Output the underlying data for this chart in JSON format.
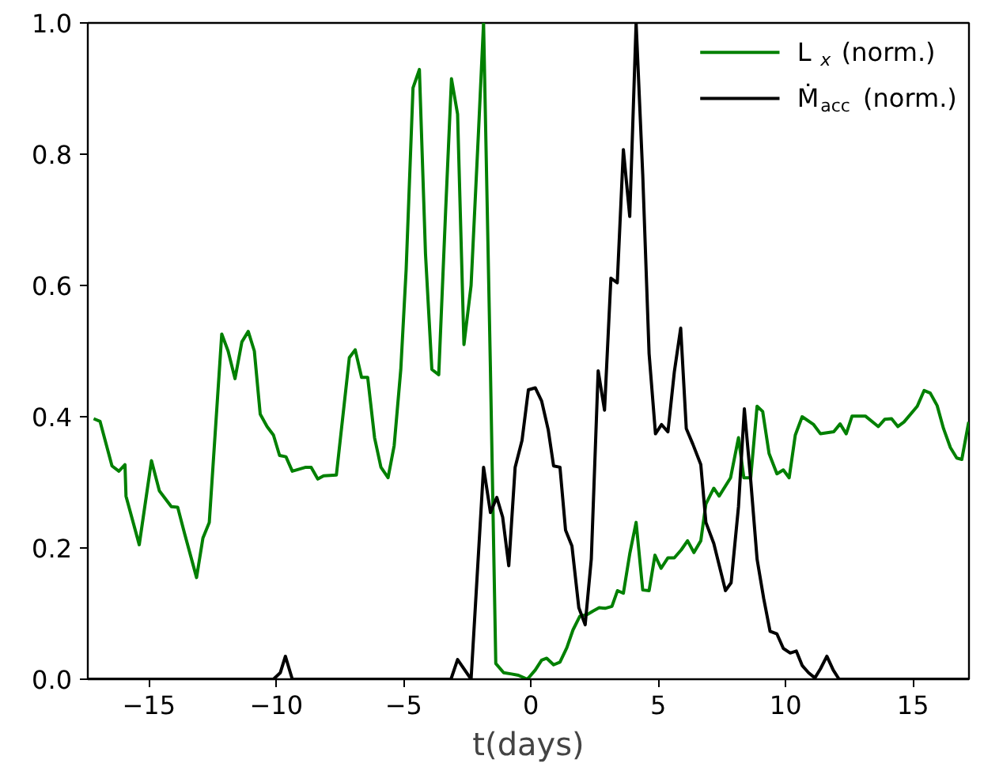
{
  "chart_data": {
    "type": "line",
    "xlabel": "t(days)",
    "xlim": [
      -17.4,
      17.2
    ],
    "ylim": [
      0,
      1
    ],
    "xticks": [
      {
        "value": -15,
        "label": "−15"
      },
      {
        "value": -10,
        "label": "−10"
      },
      {
        "value": -5,
        "label": "−5"
      },
      0,
      5,
      10,
      15
    ],
    "yticks": [
      {
        "value": 0,
        "label": "0.0"
      },
      {
        "value": 0.2,
        "label": "0.2"
      },
      {
        "value": 0.4,
        "label": "0.4"
      },
      {
        "value": 0.6,
        "label": "0.6"
      },
      {
        "value": 0.8,
        "label": "0.8"
      },
      {
        "value": 1,
        "label": "1.0"
      }
    ],
    "grid": false,
    "legend": "top right",
    "marker": "none",
    "line_style": "solid",
    "series": [
      {
        "name": "L$_{x}$ (norm.)",
        "color": "#008000",
        "x": [
          -17.17,
          -16.92,
          -16.45,
          -16.18,
          -15.94,
          -15.9,
          -15.38,
          -14.9,
          -14.59,
          -14.12,
          -13.87,
          -13.6,
          -13.13,
          -12.88,
          -12.63,
          -12.14,
          -11.89,
          -11.62,
          -11.35,
          -11.1,
          -10.86,
          -10.63,
          -10.36,
          -10.11,
          -9.87,
          -9.62,
          -9.37,
          -8.84,
          -8.63,
          -8.37,
          -8.14,
          -7.64,
          -7.13,
          -6.9,
          -6.65,
          -6.41,
          -6.14,
          -5.89,
          -5.61,
          -5.37,
          -5.11,
          -4.9,
          -4.63,
          -4.38,
          -4.14,
          -3.89,
          -3.62,
          -3.35,
          -3.12,
          -2.88,
          -2.63,
          -2.35,
          -2.06,
          -1.86,
          -1.59,
          -1.38,
          -1.07,
          -0.76,
          -0.49,
          -0.14,
          0.17,
          0.42,
          0.62,
          0.89,
          1.14,
          1.41,
          1.65,
          1.92,
          2.23,
          2.44,
          2.68,
          2.91,
          3.18,
          3.4,
          3.63,
          3.88,
          4.13,
          4.39,
          4.64,
          4.87,
          5.11,
          5.38,
          5.63,
          5.9,
          6.15,
          6.4,
          6.67,
          6.87,
          7.18,
          7.39,
          7.84,
          8.15,
          8.36,
          8.63,
          8.88,
          9.1,
          9.35,
          9.66,
          9.91,
          10.14,
          10.38,
          10.65,
          11.1,
          11.37,
          11.89,
          12.14,
          12.38,
          12.61,
          13.13,
          13.64,
          13.89,
          14.16,
          14.41,
          14.65,
          15.17,
          15.44,
          15.68,
          15.95,
          16.2,
          16.47,
          16.72,
          16.92,
          17.19
        ],
        "values": [
          0.397,
          0.393,
          0.325,
          0.317,
          0.327,
          0.279,
          0.205,
          0.333,
          0.287,
          0.263,
          0.262,
          0.222,
          0.155,
          0.215,
          0.239,
          0.526,
          0.5,
          0.458,
          0.514,
          0.53,
          0.5,
          0.404,
          0.385,
          0.372,
          0.341,
          0.339,
          0.317,
          0.323,
          0.323,
          0.305,
          0.31,
          0.311,
          0.49,
          0.502,
          0.46,
          0.46,
          0.368,
          0.323,
          0.307,
          0.356,
          0.472,
          0.624,
          0.901,
          0.929,
          0.648,
          0.472,
          0.464,
          0.713,
          0.915,
          0.861,
          0.51,
          0.6,
          0.833,
          1.0,
          0.472,
          0.024,
          0.01,
          0.008,
          0.006,
          0.0,
          0.014,
          0.029,
          0.032,
          0.022,
          0.026,
          0.048,
          0.075,
          0.096,
          0.099,
          0.104,
          0.109,
          0.108,
          0.111,
          0.135,
          0.131,
          0.191,
          0.239,
          0.136,
          0.135,
          0.189,
          0.169,
          0.185,
          0.185,
          0.197,
          0.211,
          0.193,
          0.211,
          0.267,
          0.291,
          0.279,
          0.307,
          0.368,
          0.307,
          0.307,
          0.416,
          0.408,
          0.344,
          0.313,
          0.319,
          0.307,
          0.372,
          0.4,
          0.388,
          0.374,
          0.377,
          0.389,
          0.374,
          0.401,
          0.401,
          0.385,
          0.396,
          0.397,
          0.385,
          0.392,
          0.416,
          0.44,
          0.436,
          0.417,
          0.382,
          0.353,
          0.337,
          0.335,
          0.392
        ]
      },
      {
        "name": "Ṁ$_{acc}$ (norm.)",
        "color": "#000000",
        "x": [
          -17.4,
          -10.11,
          -9.84,
          -9.64,
          -9.37,
          -3.14,
          -2.88,
          -2.35,
          -1.86,
          -1.59,
          -1.34,
          -1.11,
          -0.87,
          -0.62,
          -0.35,
          -0.1,
          0.17,
          0.42,
          0.68,
          0.89,
          1.14,
          1.36,
          1.61,
          1.88,
          2.13,
          2.37,
          2.64,
          2.89,
          3.14,
          3.39,
          3.63,
          3.88,
          4.13,
          4.39,
          4.64,
          4.89,
          5.13,
          5.38,
          5.63,
          5.88,
          6.1,
          6.36,
          6.67,
          6.87,
          7.18,
          7.64,
          7.86,
          8.15,
          8.38,
          8.63,
          8.88,
          9.14,
          9.39,
          9.66,
          9.91,
          10.18,
          10.42,
          10.65,
          10.9,
          11.15,
          11.37,
          11.62,
          11.87,
          12.1,
          17.2
        ],
        "values": [
          0,
          0,
          0.01,
          0.035,
          0,
          0,
          0.03,
          0,
          0.323,
          0.254,
          0.277,
          0.247,
          0.173,
          0.323,
          0.364,
          0.441,
          0.444,
          0.424,
          0.38,
          0.325,
          0.323,
          0.227,
          0.203,
          0.109,
          0.083,
          0.183,
          0.47,
          0.41,
          0.611,
          0.604,
          0.807,
          0.705,
          1.0,
          0.769,
          0.496,
          0.374,
          0.388,
          0.377,
          0.468,
          0.535,
          0.382,
          0.358,
          0.327,
          0.239,
          0.207,
          0.135,
          0.147,
          0.263,
          0.412,
          0.303,
          0.183,
          0.123,
          0.073,
          0.069,
          0.047,
          0.04,
          0.043,
          0.021,
          0.01,
          0.002,
          0.016,
          0.035,
          0.014,
          0,
          0
        ]
      }
    ]
  }
}
